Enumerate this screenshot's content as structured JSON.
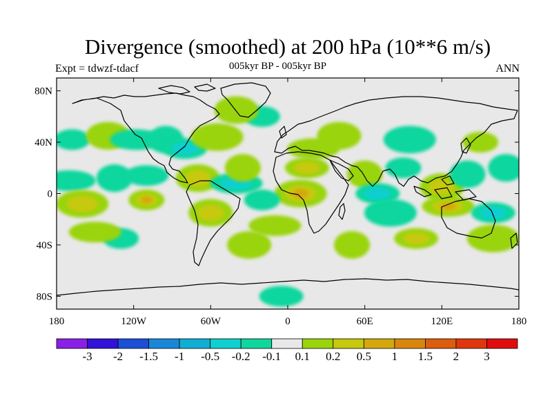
{
  "title": "Divergence (smoothed) at 200 hPa (10**6 m/s)",
  "subtitle_left": "Expt = tdwzf-tdacf",
  "subtitle_center": "005kyr BP - 005kyr BP",
  "subtitle_right": "ANN",
  "map": {
    "projection": "cylindrical-equidistant",
    "lon_range": [
      -180,
      180
    ],
    "lat_range": [
      -90,
      90
    ],
    "ocean_color": "#e8e8e8",
    "coastline_color": "#000000",
    "lat_ticks": [
      "80N",
      "40N",
      "0",
      "40S",
      "80S"
    ],
    "lon_ticks": [
      "180",
      "120W",
      "60W",
      "0",
      "60E",
      "120E",
      "180"
    ]
  },
  "colorbar": {
    "colors": [
      "#8a1fe6",
      "#3211d9",
      "#1a4fd6",
      "#1a86d9",
      "#10aed4",
      "#10cfd0",
      "#10d69e",
      "#e8e8e8",
      "#9ad40d",
      "#c6c90d",
      "#d4a80d",
      "#d8860d",
      "#dc5d0d",
      "#e0360d",
      "#e00d0d"
    ],
    "labels": [
      "-3",
      "-2",
      "-1.5",
      "-1",
      "-0.5",
      "-0.2",
      "-0.1",
      "0.1",
      "0.2",
      "0.5",
      "1",
      "1.5",
      "2",
      "3"
    ]
  },
  "field_cells": [
    {
      "lon": -168,
      "lat": 42,
      "level": -1
    },
    {
      "lon": -140,
      "lat": 45,
      "level": 1
    },
    {
      "lon": -118,
      "lat": 42,
      "level": -1
    },
    {
      "lon": -95,
      "lat": 42,
      "level": -1
    },
    {
      "lon": -80,
      "lat": 35,
      "level": -2
    },
    {
      "lon": -55,
      "lat": 44,
      "level": 1
    },
    {
      "lon": -20,
      "lat": 60,
      "level": -1
    },
    {
      "lon": -40,
      "lat": 65,
      "level": 1
    },
    {
      "lon": -170,
      "lat": 10,
      "level": -1
    },
    {
      "lon": -135,
      "lat": 12,
      "level": -1
    },
    {
      "lon": -110,
      "lat": 14,
      "level": -1
    },
    {
      "lon": -160,
      "lat": -8,
      "level": 2
    },
    {
      "lon": -110,
      "lat": -5,
      "level": 3
    },
    {
      "lon": -70,
      "lat": 12,
      "level": 2
    },
    {
      "lon": -40,
      "lat": 8,
      "level": -2
    },
    {
      "lon": -35,
      "lat": 20,
      "level": 1
    },
    {
      "lon": 15,
      "lat": 20,
      "level": 2
    },
    {
      "lon": 10,
      "lat": 0,
      "level": 3
    },
    {
      "lon": -20,
      "lat": -5,
      "level": -1
    },
    {
      "lon": -60,
      "lat": -15,
      "level": 2
    },
    {
      "lon": -10,
      "lat": -25,
      "level": 1
    },
    {
      "lon": 60,
      "lat": 15,
      "level": 1
    },
    {
      "lon": 70,
      "lat": 0,
      "level": -2
    },
    {
      "lon": 80,
      "lat": -15,
      "level": -1
    },
    {
      "lon": 90,
      "lat": 20,
      "level": -1
    },
    {
      "lon": 120,
      "lat": 5,
      "level": 2
    },
    {
      "lon": 125,
      "lat": -10,
      "level": 3
    },
    {
      "lon": 140,
      "lat": 15,
      "level": -1
    },
    {
      "lon": 160,
      "lat": -15,
      "level": -2
    },
    {
      "lon": 95,
      "lat": 42,
      "level": -1
    },
    {
      "lon": 150,
      "lat": 40,
      "level": 1
    },
    {
      "lon": 40,
      "lat": 45,
      "level": 1
    },
    {
      "lon": 20,
      "lat": 35,
      "level": 1
    },
    {
      "lon": 50,
      "lat": -40,
      "level": 1
    },
    {
      "lon": 100,
      "lat": -35,
      "level": 2
    },
    {
      "lon": 160,
      "lat": -35,
      "level": 1
    },
    {
      "lon": -130,
      "lat": -35,
      "level": -1
    },
    {
      "lon": -30,
      "lat": -40,
      "level": 1
    },
    {
      "lon": -150,
      "lat": -30,
      "level": 1
    },
    {
      "lon": 170,
      "lat": 20,
      "level": -1
    },
    {
      "lon": -5,
      "lat": -80,
      "level": -1
    }
  ]
}
